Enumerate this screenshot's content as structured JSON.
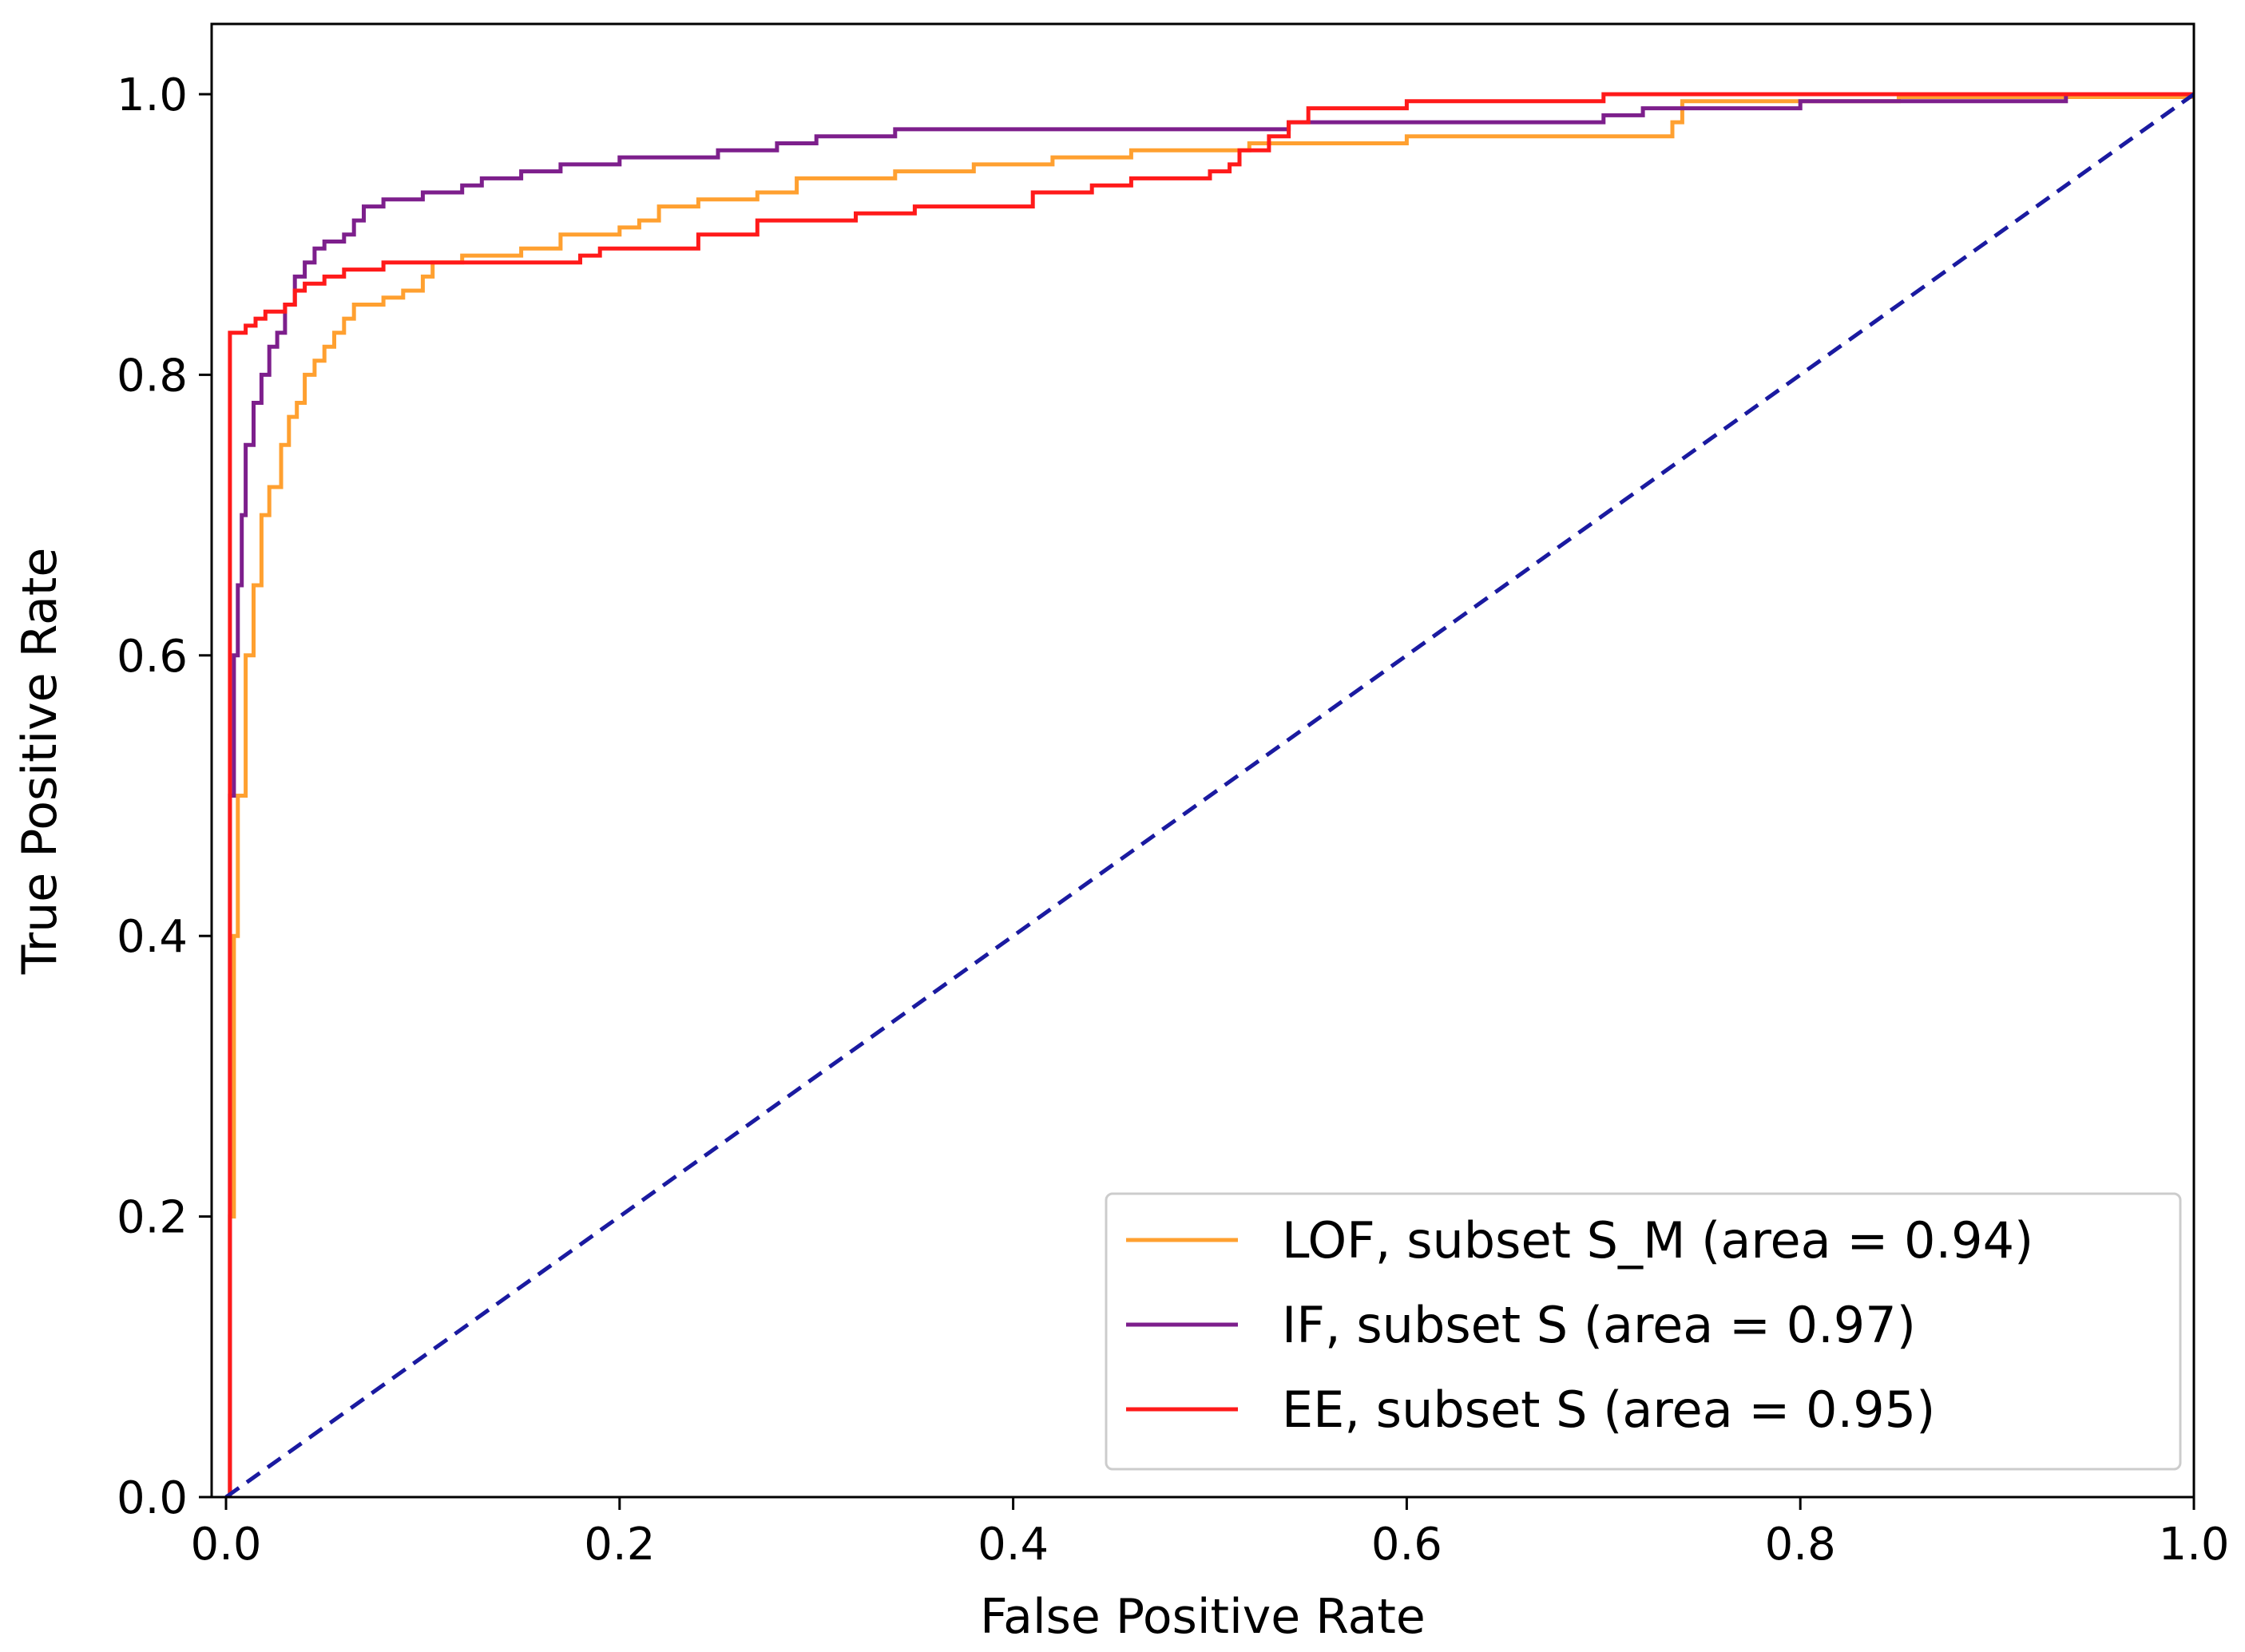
{
  "chart_data": {
    "type": "line",
    "title": "",
    "xlabel": "False Positive Rate",
    "ylabel": "True Positive Rate",
    "xlim": [
      0.0,
      1.0
    ],
    "ylim": [
      0.0,
      1.05
    ],
    "xticks": [
      0.0,
      0.2,
      0.4,
      0.6,
      0.8,
      1.0
    ],
    "yticks": [
      0.0,
      0.2,
      0.4,
      0.6,
      0.8,
      1.0
    ],
    "xtick_labels": [
      "0.0",
      "0.2",
      "0.4",
      "0.6",
      "0.8",
      "1.0"
    ],
    "ytick_labels": [
      "0.0",
      "0.2",
      "0.4",
      "0.6",
      "0.8",
      "1.0"
    ],
    "grid": false,
    "legend_position": "lower-right",
    "series": [
      {
        "name": "LOF, subset S_M (area = 0.94)",
        "color": "#ffa030",
        "style": "step",
        "points": [
          [
            0.0,
            0.0
          ],
          [
            0.002,
            0.2
          ],
          [
            0.004,
            0.4
          ],
          [
            0.006,
            0.5
          ],
          [
            0.01,
            0.6
          ],
          [
            0.014,
            0.65
          ],
          [
            0.018,
            0.7
          ],
          [
            0.022,
            0.72
          ],
          [
            0.028,
            0.75
          ],
          [
            0.032,
            0.77
          ],
          [
            0.036,
            0.78
          ],
          [
            0.04,
            0.8
          ],
          [
            0.045,
            0.81
          ],
          [
            0.05,
            0.82
          ],
          [
            0.055,
            0.83
          ],
          [
            0.06,
            0.84
          ],
          [
            0.065,
            0.85
          ],
          [
            0.08,
            0.855
          ],
          [
            0.09,
            0.86
          ],
          [
            0.1,
            0.87
          ],
          [
            0.105,
            0.88
          ],
          [
            0.12,
            0.885
          ],
          [
            0.15,
            0.89
          ],
          [
            0.17,
            0.9
          ],
          [
            0.2,
            0.905
          ],
          [
            0.21,
            0.91
          ],
          [
            0.22,
            0.92
          ],
          [
            0.24,
            0.925
          ],
          [
            0.27,
            0.93
          ],
          [
            0.29,
            0.94
          ],
          [
            0.34,
            0.945
          ],
          [
            0.38,
            0.95
          ],
          [
            0.42,
            0.955
          ],
          [
            0.46,
            0.96
          ],
          [
            0.52,
            0.965
          ],
          [
            0.56,
            0.965
          ],
          [
            0.6,
            0.97
          ],
          [
            0.73,
            0.97
          ],
          [
            0.735,
            0.98
          ],
          [
            0.74,
            0.995
          ],
          [
            0.85,
            0.998
          ],
          [
            1.0,
            1.0
          ]
        ]
      },
      {
        "name": "IF, subset S (area = 0.97)",
        "color": "#7d1f8c",
        "style": "step",
        "points": [
          [
            0.0,
            0.0
          ],
          [
            0.002,
            0.5
          ],
          [
            0.004,
            0.6
          ],
          [
            0.006,
            0.65
          ],
          [
            0.008,
            0.7
          ],
          [
            0.01,
            0.75
          ],
          [
            0.014,
            0.78
          ],
          [
            0.018,
            0.8
          ],
          [
            0.022,
            0.82
          ],
          [
            0.026,
            0.83
          ],
          [
            0.03,
            0.85
          ],
          [
            0.035,
            0.87
          ],
          [
            0.04,
            0.88
          ],
          [
            0.045,
            0.89
          ],
          [
            0.05,
            0.895
          ],
          [
            0.06,
            0.9
          ],
          [
            0.065,
            0.91
          ],
          [
            0.07,
            0.92
          ],
          [
            0.08,
            0.925
          ],
          [
            0.1,
            0.93
          ],
          [
            0.12,
            0.935
          ],
          [
            0.13,
            0.94
          ],
          [
            0.15,
            0.945
          ],
          [
            0.17,
            0.95
          ],
          [
            0.2,
            0.955
          ],
          [
            0.25,
            0.96
          ],
          [
            0.28,
            0.965
          ],
          [
            0.3,
            0.97
          ],
          [
            0.34,
            0.975
          ],
          [
            0.54,
            0.98
          ],
          [
            0.7,
            0.985
          ],
          [
            0.72,
            0.99
          ],
          [
            0.8,
            0.995
          ],
          [
            0.93,
            0.995
          ],
          [
            0.935,
            1.0
          ],
          [
            1.0,
            1.0
          ]
        ]
      },
      {
        "name": "EE, subset S (area = 0.95)",
        "color": "#ff1a1a",
        "style": "step",
        "points": [
          [
            0.0,
            0.0
          ],
          [
            0.002,
            0.83
          ],
          [
            0.01,
            0.835
          ],
          [
            0.015,
            0.84
          ],
          [
            0.02,
            0.845
          ],
          [
            0.03,
            0.85
          ],
          [
            0.035,
            0.86
          ],
          [
            0.04,
            0.865
          ],
          [
            0.05,
            0.87
          ],
          [
            0.06,
            0.875
          ],
          [
            0.08,
            0.88
          ],
          [
            0.18,
            0.885
          ],
          [
            0.19,
            0.89
          ],
          [
            0.24,
            0.9
          ],
          [
            0.27,
            0.91
          ],
          [
            0.32,
            0.915
          ],
          [
            0.35,
            0.92
          ],
          [
            0.41,
            0.93
          ],
          [
            0.44,
            0.935
          ],
          [
            0.46,
            0.94
          ],
          [
            0.5,
            0.945
          ],
          [
            0.51,
            0.95
          ],
          [
            0.515,
            0.96
          ],
          [
            0.53,
            0.97
          ],
          [
            0.54,
            0.98
          ],
          [
            0.55,
            0.99
          ],
          [
            0.6,
            0.995
          ],
          [
            0.7,
            1.0
          ],
          [
            1.0,
            1.0
          ]
        ]
      },
      {
        "name": "diagonal",
        "color": "#1a1aa0",
        "style": "dashed",
        "points": [
          [
            0.0,
            0.0
          ],
          [
            1.0,
            1.0
          ]
        ]
      }
    ]
  }
}
